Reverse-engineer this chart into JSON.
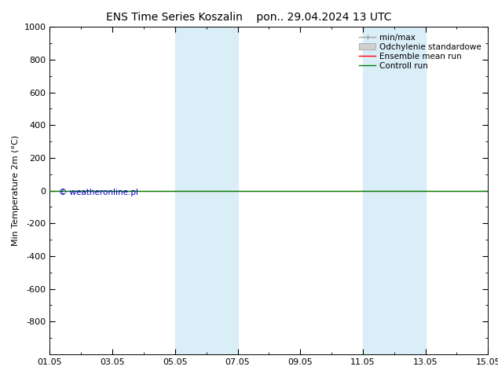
{
  "title_left": "ENS Time Series Koszalin",
  "title_right": "pon.. 29.04.2024 13 UTC",
  "ylabel": "Min Temperature 2m (°C)",
  "ylim_top": -1000,
  "ylim_bottom": 1000,
  "yticks": [
    -800,
    -600,
    -400,
    -200,
    0,
    200,
    400,
    600,
    800,
    1000
  ],
  "xtick_labels": [
    "01.05",
    "03.05",
    "05.05",
    "07.05",
    "09.05",
    "11.05",
    "13.05",
    "15.05"
  ],
  "xtick_positions": [
    0,
    2,
    4,
    6,
    8,
    10,
    12,
    14
  ],
  "blue_bands": [
    {
      "x_start": 4,
      "x_end": 6
    },
    {
      "x_start": 10,
      "x_end": 12
    }
  ],
  "hline_green_y": 0,
  "hline_red_y": 0,
  "control_run_color": "#008000",
  "ensemble_mean_color": "#ff0000",
  "minmax_color": "#a0a0a0",
  "std_fill_color": "#d0d0d0",
  "std_edge_color": "#b0b0b0",
  "blue_band_color": "#daeef8",
  "copyright_text": "© weatheronline.pl",
  "copyright_color": "#0000cc",
  "legend_labels": [
    "min/max",
    "Odchylenie standardowe",
    "Ensemble mean run",
    "Controll run"
  ],
  "background_color": "#ffffff",
  "title_fontsize": 10,
  "tick_fontsize": 8,
  "ylabel_fontsize": 8,
  "legend_fontsize": 7.5
}
